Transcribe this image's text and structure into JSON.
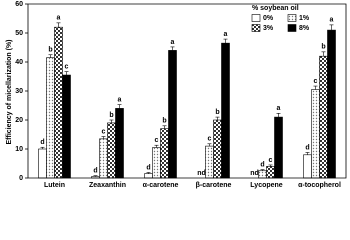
{
  "chart_data": {
    "type": "bar",
    "ylabel": "Efficiency of micellarization (%)",
    "legend_title": "% soybean oil",
    "categories": [
      "Lutein",
      "Zeaxanthin",
      "α-carotene",
      "β-carotene",
      "Lycopene",
      "α-tocopherol"
    ],
    "series": [
      {
        "name": "0%",
        "color": "#ffffff",
        "values": [
          10,
          0.5,
          1.5,
          null,
          null,
          8
        ],
        "errors": [
          0.6,
          0.3,
          0.4,
          null,
          null,
          0.8
        ],
        "letters": [
          "d",
          "d",
          "d",
          "nd",
          "nd",
          "d"
        ]
      },
      {
        "name": "1%",
        "color": "#d0d0d0",
        "values": [
          41.5,
          13.5,
          10.5,
          11,
          2.5,
          30.5
        ],
        "errors": [
          1,
          0.8,
          0.8,
          0.8,
          0.4,
          1.2
        ],
        "letters": [
          "b",
          "c",
          "c",
          "c",
          "d",
          "c"
        ]
      },
      {
        "name": "3%",
        "color": "#808080",
        "values": [
          52,
          19,
          17,
          20,
          4,
          42
        ],
        "errors": [
          1.5,
          1,
          1,
          1,
          0.5,
          1.5
        ],
        "letters": [
          "a",
          "b",
          "b",
          "b",
          "c",
          "b"
        ]
      },
      {
        "name": "8%",
        "color": "#000000",
        "values": [
          35.5,
          24,
          44,
          46.5,
          21,
          51
        ],
        "errors": [
          1.2,
          1.3,
          1.2,
          1.4,
          1.3,
          1.8
        ],
        "letters": [
          "c",
          "a",
          "a",
          "a",
          "a",
          "a"
        ]
      }
    ],
    "ylim": [
      0,
      60
    ],
    "yticks": [
      0,
      10,
      20,
      30,
      40,
      50,
      60
    ],
    "legend": "upper right"
  }
}
